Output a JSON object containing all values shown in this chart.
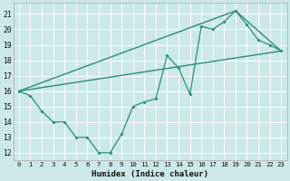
{
  "xlabel": "Humidex (Indice chaleur)",
  "bg_color": "#cce8e8",
  "grid_color": "#ffffff",
  "line_color": "#2d8b7a",
  "xlim": [
    -0.5,
    23.5
  ],
  "ylim": [
    11.5,
    21.7
  ],
  "xticks": [
    0,
    1,
    2,
    3,
    4,
    5,
    6,
    7,
    8,
    9,
    10,
    11,
    12,
    13,
    14,
    15,
    16,
    17,
    18,
    19,
    20,
    21,
    22,
    23
  ],
  "yticks": [
    12,
    13,
    14,
    15,
    16,
    17,
    18,
    19,
    20,
    21
  ],
  "line1_x": [
    0,
    1,
    2,
    3,
    4,
    5,
    6,
    7,
    8,
    9,
    10,
    11,
    12,
    13,
    14,
    15,
    16,
    17,
    18,
    19,
    20,
    21,
    22,
    23
  ],
  "line1_y": [
    16.0,
    15.7,
    14.7,
    14.0,
    14.0,
    13.0,
    13.0,
    12.0,
    12.0,
    13.2,
    15.0,
    15.3,
    15.5,
    18.3,
    17.5,
    15.8,
    20.2,
    20.0,
    20.5,
    21.2,
    20.3,
    19.3,
    19.0,
    18.6
  ],
  "line2_x": [
    0,
    23
  ],
  "line2_y": [
    16.0,
    18.6
  ],
  "line3_x": [
    0,
    19,
    23
  ],
  "line3_y": [
    16.0,
    21.2,
    18.6
  ]
}
